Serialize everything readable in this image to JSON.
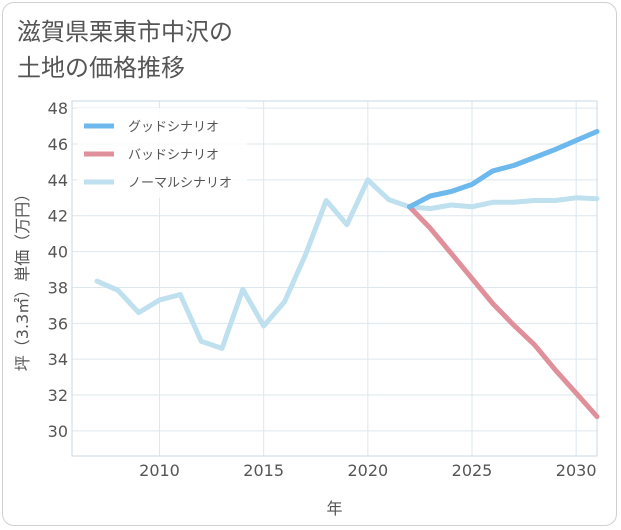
{
  "title": "滋賀県栗東市中沢の\n土地の価格推移",
  "chart_data": {
    "type": "line",
    "title": "滋賀県栗東市中沢の土地の価格推移",
    "xlabel": "年",
    "ylabel": "坪（3.3㎡）単価（万円）",
    "xlim": [
      2005.8,
      2031
    ],
    "ylim": [
      28.6,
      48.4
    ],
    "x_ticks": [
      2010,
      2015,
      2020,
      2025,
      2030
    ],
    "y_ticks": [
      30,
      32,
      34,
      36,
      38,
      40,
      42,
      44,
      46,
      48
    ],
    "grid": true,
    "legend_position": "top-left",
    "series": [
      {
        "name": "グッドシナリオ",
        "color": "#6db8ec",
        "x": [
          2022,
          2023,
          2024,
          2025,
          2026,
          2027,
          2028,
          2029,
          2030,
          2031
        ],
        "y": [
          42.5,
          43.1,
          43.35,
          43.75,
          44.5,
          44.8,
          45.25,
          45.7,
          46.2,
          46.7
        ]
      },
      {
        "name": "バッドシナリオ",
        "color": "#e0909a",
        "x": [
          2022,
          2023,
          2024,
          2025,
          2026,
          2027,
          2028,
          2029,
          2030,
          2031
        ],
        "y": [
          42.5,
          41.3,
          39.9,
          38.5,
          37.1,
          35.9,
          34.8,
          33.4,
          32.1,
          30.8
        ]
      },
      {
        "name": "ノーマルシナリオ",
        "color": "#bfe0ef",
        "x": [
          2007,
          2008,
          2009,
          2010,
          2011,
          2012,
          2013,
          2014,
          2015,
          2016,
          2017,
          2018,
          2019,
          2020,
          2021,
          2022,
          2023,
          2024,
          2025,
          2026,
          2027,
          2028,
          2029,
          2030,
          2031
        ],
        "y": [
          38.35,
          37.85,
          36.6,
          37.3,
          37.6,
          35.0,
          34.6,
          37.9,
          35.85,
          37.2,
          39.8,
          42.85,
          41.5,
          44.0,
          42.9,
          42.5,
          42.4,
          42.6,
          42.5,
          42.75,
          42.75,
          42.85,
          42.85,
          43.0,
          42.95
        ]
      }
    ]
  }
}
